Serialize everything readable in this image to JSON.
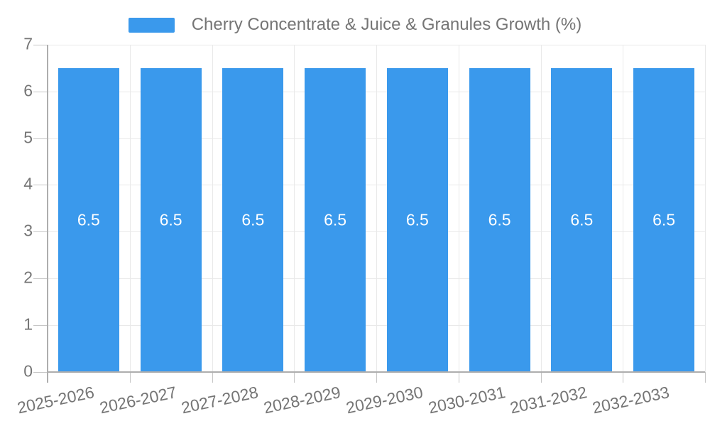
{
  "legend": {
    "series_label": "Cherry Concentrate & Juice & Granules Growth (%)"
  },
  "chart_data": {
    "type": "bar",
    "title": "Cherry Concentrate & Juice & Granules Growth (%)",
    "xlabel": "",
    "ylabel": "",
    "categories": [
      "2025-2026",
      "2026-2027",
      "2027-2028",
      "2028-2029",
      "2029-2030",
      "2030-2031",
      "2031-2032",
      "2032-2033"
    ],
    "values": [
      6.5,
      6.5,
      6.5,
      6.5,
      6.5,
      6.5,
      6.5,
      6.5
    ],
    "value_labels": [
      "6.5",
      "6.5",
      "6.5",
      "6.5",
      "6.5",
      "6.5",
      "6.5",
      "6.5"
    ],
    "ylim": [
      0,
      7
    ],
    "y_ticks": [
      0,
      1,
      2,
      3,
      4,
      5,
      6,
      7
    ],
    "grid": true,
    "legend_position": "top",
    "x_label_rotation_deg": -12,
    "colors": {
      "bar": "#3a99ec",
      "bar_label": "#ffffff",
      "axis_text": "#757575",
      "grid_line": "#e9e9e9",
      "axis_line": "#aeaeae",
      "tick_mark": "#c6c6c6",
      "background": "#ffffff"
    }
  }
}
